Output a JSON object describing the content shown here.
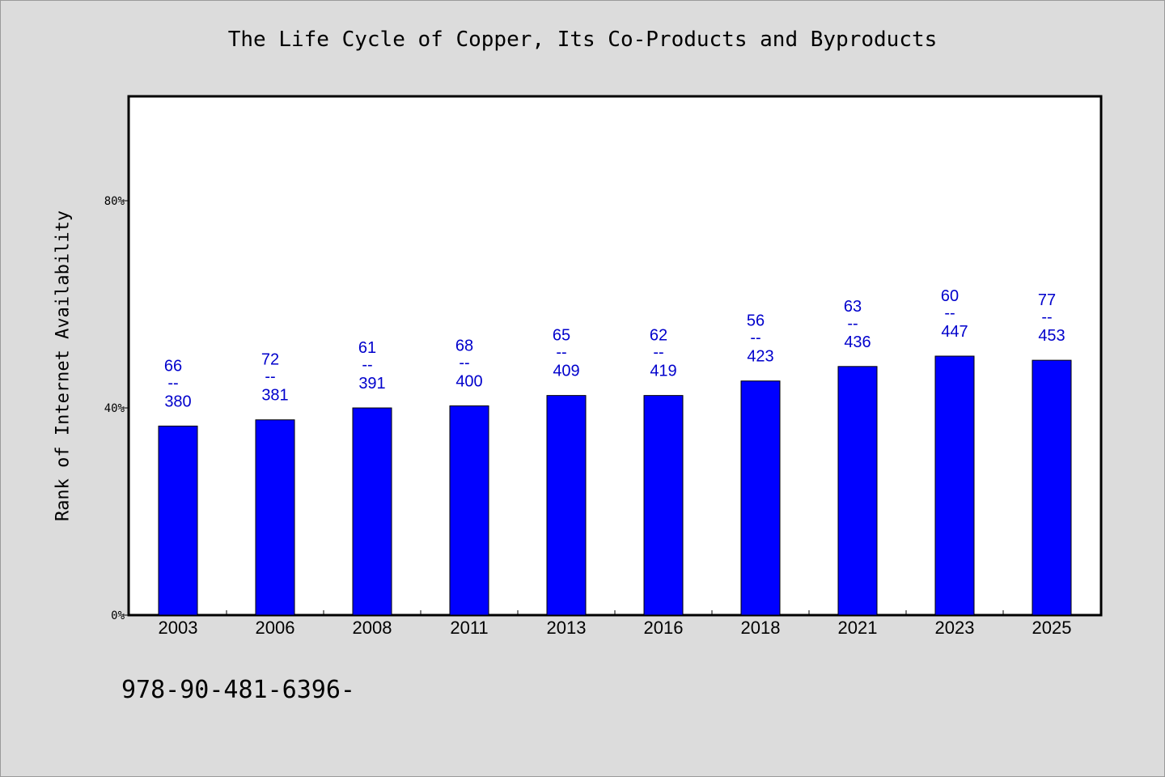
{
  "title": "The Life Cycle of Copper, Its Co-Products and Byproducts",
  "footer_code": "978-90-481-6396-",
  "colors": {
    "bar": "#0000ff",
    "data_label": "#0000cc",
    "background": "#dcdcdc",
    "plot_background": "#ffffff"
  },
  "chart_data": {
    "type": "bar",
    "title": "The Life Cycle of Copper, Its Co-Products and Byproducts",
    "xlabel": "",
    "ylabel": "Rank of Internet Availability",
    "categories": [
      "2003",
      "2006",
      "2008",
      "2011",
      "2013",
      "2016",
      "2018",
      "2021",
      "2023",
      "2025"
    ],
    "values": [
      36.5,
      37.7,
      40.0,
      40.4,
      42.4,
      42.4,
      45.2,
      48.0,
      50.0,
      49.2
    ],
    "value_unit": "%",
    "labels_top": [
      "66",
      "72",
      "61",
      "68",
      "65",
      "62",
      "56",
      "63",
      "60",
      "77"
    ],
    "labels_sep": "--",
    "labels_bottom": [
      "380",
      "381",
      "391",
      "400",
      "409",
      "419",
      "423",
      "436",
      "447",
      "453"
    ],
    "yticks": [
      0,
      40,
      80
    ],
    "ytick_labels": [
      "0%",
      "40%",
      "80%"
    ],
    "ylim": [
      0,
      100
    ],
    "grid": false,
    "legend": "none"
  }
}
